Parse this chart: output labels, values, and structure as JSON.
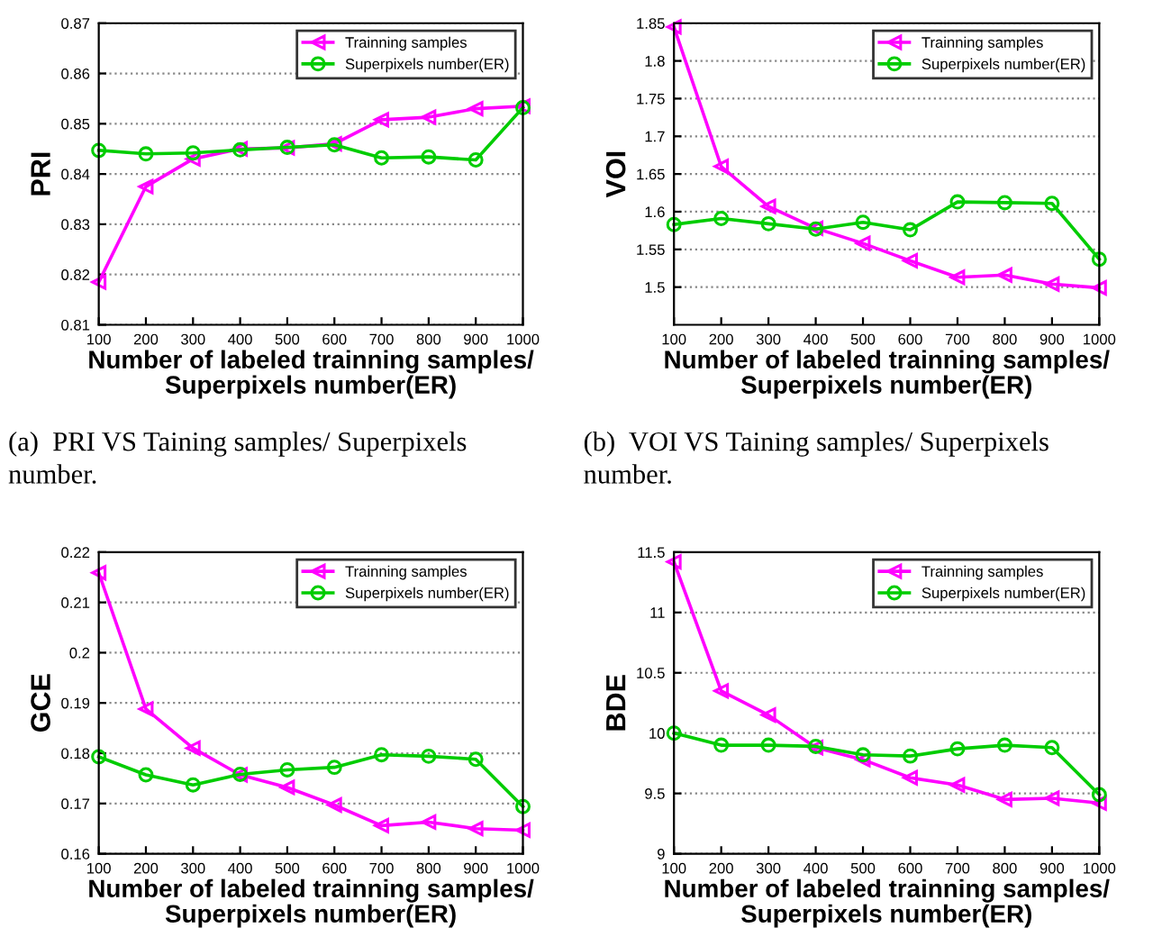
{
  "chart_data": [
    {
      "type": "line",
      "ylabel": "PRI",
      "xlabel": "Number of labeled trainning samples/\nSuperpixels number(ER)",
      "annotations": [
        "(a)  PRI VS Taining samples/ Superpixels\nnumber."
      ],
      "x": [
        100,
        200,
        300,
        400,
        500,
        600,
        700,
        800,
        900,
        1000
      ],
      "xlim": [
        100,
        1000
      ],
      "xticks": [
        100,
        200,
        300,
        400,
        500,
        600,
        700,
        800,
        900,
        1000
      ],
      "ylim": [
        0.81,
        0.87
      ],
      "yticks": [
        0.81,
        0.82,
        0.83,
        0.84,
        0.85,
        0.86,
        0.87
      ],
      "grid": "y",
      "legend": "top right",
      "series": [
        {
          "name": "Trainning samples",
          "color": "#ff00ff",
          "marker": "triangle",
          "values": [
            0.8185,
            0.8375,
            0.843,
            0.845,
            0.8452,
            0.846,
            0.8508,
            0.8513,
            0.853,
            0.8535
          ]
        },
        {
          "name": "Superpixels number(ER)",
          "color": "#00cc00",
          "marker": "circle",
          "values": [
            0.8447,
            0.844,
            0.8442,
            0.8448,
            0.8453,
            0.8458,
            0.8432,
            0.8434,
            0.8428,
            0.8532
          ]
        }
      ]
    },
    {
      "type": "line",
      "ylabel": "VOI",
      "xlabel": "Number of labeled trainning samples/\nSuperpixels number(ER)",
      "annotations": [
        "(b)  VOI VS Taining samples/ Superpixels\nnumber."
      ],
      "x": [
        100,
        200,
        300,
        400,
        500,
        600,
        700,
        800,
        900,
        1000
      ],
      "xlim": [
        100,
        1000
      ],
      "xticks": [
        100,
        200,
        300,
        400,
        500,
        600,
        700,
        800,
        900,
        1000
      ],
      "ylim": [
        1.45,
        1.85
      ],
      "yticks": [
        1.5,
        1.55,
        1.6,
        1.65,
        1.7,
        1.75,
        1.8,
        1.85
      ],
      "grid": "y",
      "legend": "top right",
      "series": [
        {
          "name": "Trainning samples",
          "color": "#ff00ff",
          "marker": "triangle",
          "values": [
            1.845,
            1.66,
            1.607,
            1.578,
            1.558,
            1.535,
            1.513,
            1.516,
            1.504,
            1.499
          ]
        },
        {
          "name": "Superpixels number(ER)",
          "color": "#00cc00",
          "marker": "circle",
          "values": [
            1.583,
            1.591,
            1.584,
            1.577,
            1.586,
            1.576,
            1.613,
            1.612,
            1.611,
            1.537
          ]
        }
      ]
    },
    {
      "type": "line",
      "ylabel": "GCE",
      "xlabel": "Number of labeled trainning samples/\nSuperpixels number(ER)",
      "x": [
        100,
        200,
        300,
        400,
        500,
        600,
        700,
        800,
        900,
        1000
      ],
      "xlim": [
        100,
        1000
      ],
      "xticks": [
        100,
        200,
        300,
        400,
        500,
        600,
        700,
        800,
        900,
        1000
      ],
      "ylim": [
        0.16,
        0.22
      ],
      "yticks": [
        0.16,
        0.17,
        0.18,
        0.19,
        0.2,
        0.21,
        0.22
      ],
      "grid": "y",
      "legend": "top right",
      "series": [
        {
          "name": "Trainning samples",
          "color": "#ff00ff",
          "marker": "triangle",
          "values": [
            0.2159,
            0.1888,
            0.181,
            0.1757,
            0.1732,
            0.1697,
            0.1656,
            0.1663,
            0.165,
            0.1647
          ]
        },
        {
          "name": "Superpixels number(ER)",
          "color": "#00cc00",
          "marker": "circle",
          "values": [
            0.1793,
            0.1757,
            0.1737,
            0.1758,
            0.1767,
            0.1772,
            0.1797,
            0.1794,
            0.1788,
            0.1694
          ]
        }
      ]
    },
    {
      "type": "line",
      "ylabel": "BDE",
      "xlabel": "Number of labeled trainning samples/\nSuperpixels number(ER)",
      "x": [
        100,
        200,
        300,
        400,
        500,
        600,
        700,
        800,
        900,
        1000
      ],
      "xlim": [
        100,
        1000
      ],
      "xticks": [
        100,
        200,
        300,
        400,
        500,
        600,
        700,
        800,
        900,
        1000
      ],
      "ylim": [
        9,
        11.5
      ],
      "yticks": [
        9,
        9.5,
        10,
        10.5,
        11,
        11.5
      ],
      "grid": "y",
      "legend": "top right",
      "series": [
        {
          "name": "Trainning samples",
          "color": "#ff00ff",
          "marker": "triangle",
          "values": [
            11.42,
            10.35,
            10.15,
            9.88,
            9.78,
            9.63,
            9.57,
            9.45,
            9.46,
            9.42
          ]
        },
        {
          "name": "Superpixels number(ER)",
          "color": "#00cc00",
          "marker": "circle",
          "values": [
            10.0,
            9.9,
            9.9,
            9.89,
            9.82,
            9.81,
            9.87,
            9.9,
            9.88,
            9.49
          ]
        }
      ]
    }
  ]
}
